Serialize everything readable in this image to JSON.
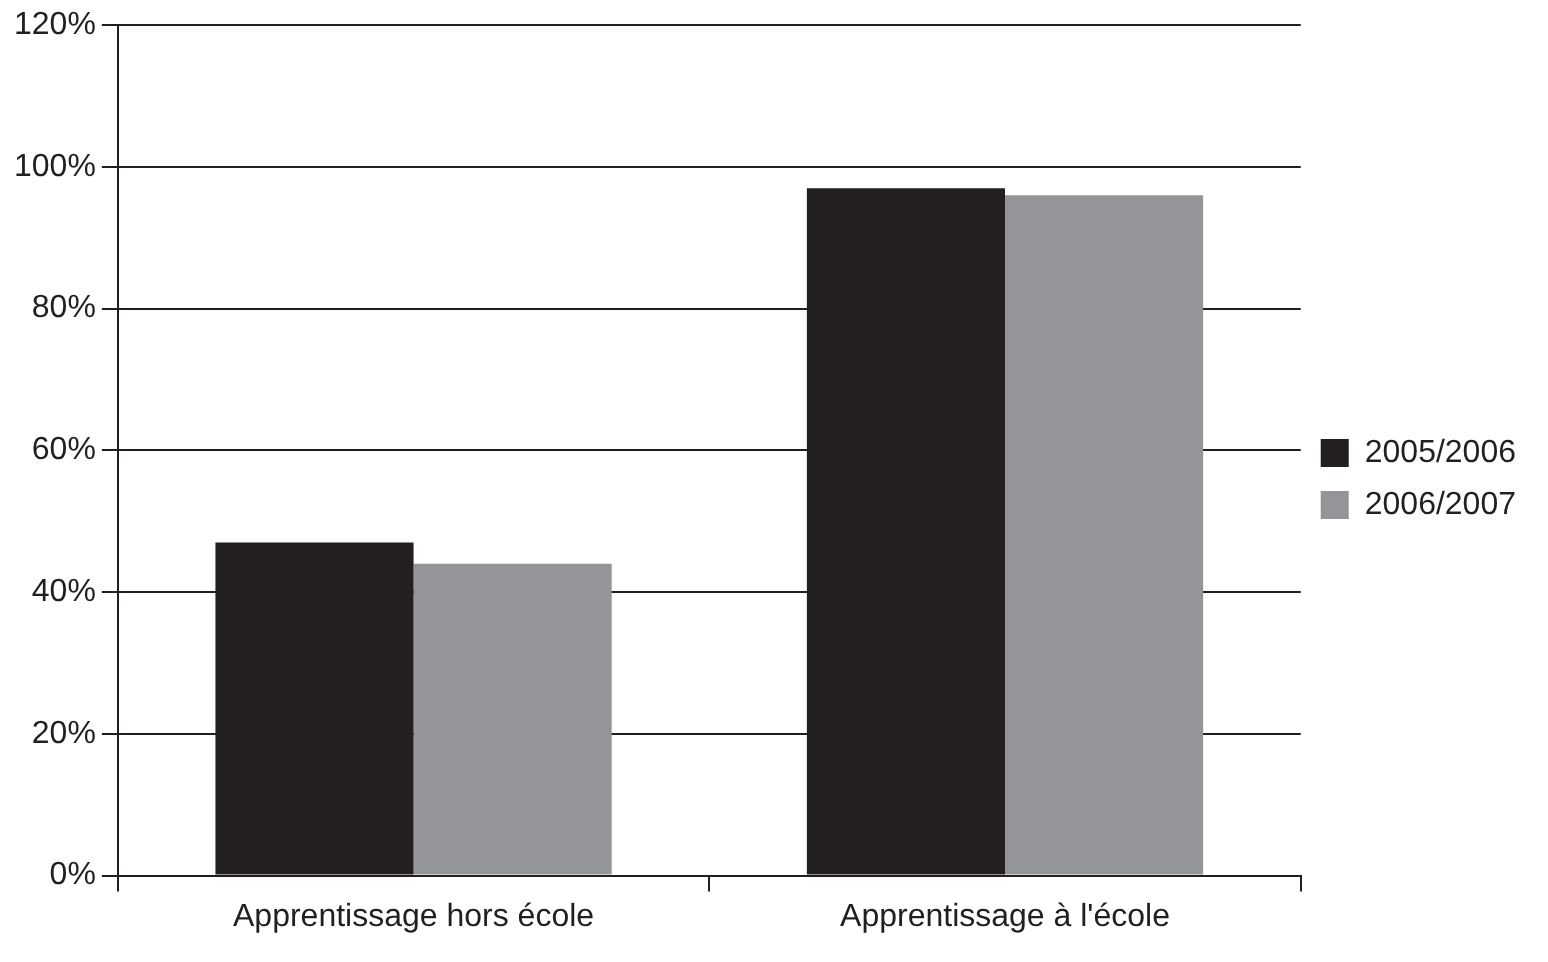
{
  "chart_data": {
    "type": "bar",
    "categories": [
      "Apprentissage hors école",
      "Apprentissage à l'école"
    ],
    "series": [
      {
        "name": "2005/2006",
        "color": "#231f20",
        "values": [
          47,
          97
        ]
      },
      {
        "name": "2006/2007",
        "color": "#939598",
        "values": [
          44,
          96
        ]
      }
    ],
    "ylim": [
      0,
      120
    ],
    "yticks": [
      {
        "value": 0,
        "label": "0%"
      },
      {
        "value": 20,
        "label": "20%"
      },
      {
        "value": 40,
        "label": "40%"
      },
      {
        "value": 60,
        "label": "60%"
      },
      {
        "value": 80,
        "label": "80%"
      },
      {
        "value": 100,
        "label": "100%"
      },
      {
        "value": 120,
        "label": "120%"
      }
    ],
    "grid": "y",
    "legend": "right"
  }
}
